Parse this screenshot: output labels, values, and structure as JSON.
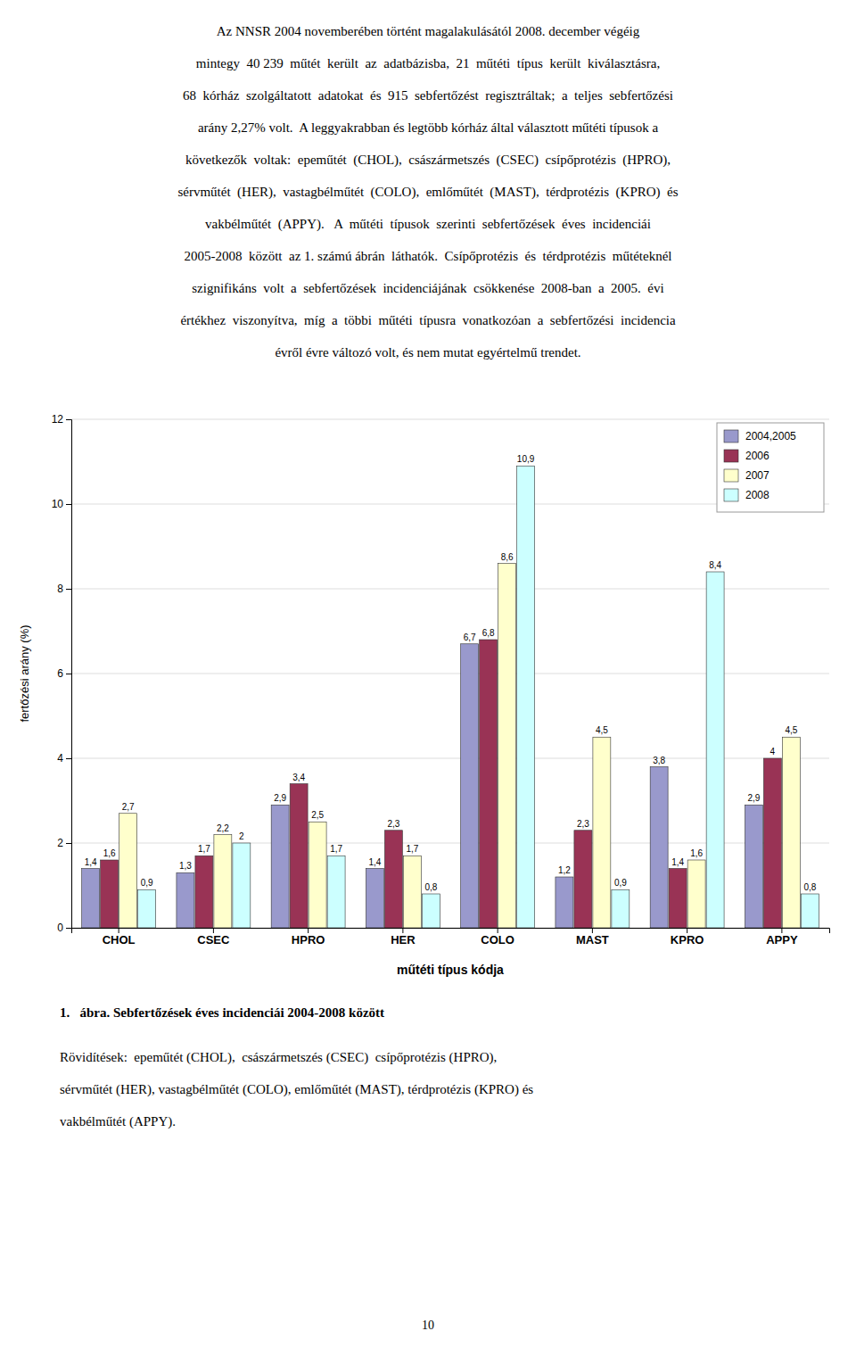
{
  "chart_data": {
    "type": "bar",
    "title": "1.   ábra. Sebfertőzések éves incidenciái 2004-2008 között",
    "annotations": [
      "Az NNSR 2004 novemberében történt magalakulásától 2008. december végéig",
      "mintegy  40 239  műtét  került  az  adatbázisba,  21  műtéti  típus  került  kiválasztásra,",
      "68  kórház  szolgáltatott  adatokat  és  915  sebfertőzést  regisztráltak;  a  teljes  sebfertőzési",
      "arány 2,27% volt.  A leggyakrabban és legtöbb kórház által választott műtéti típusok a",
      "következők  voltak:  epeműtét  (CHOL),  császármetszés  (CSEC)  csípőprotézis  (HPRO),",
      "sérvműtét  (HER),  vastagbélműtét  (COLO),  emlőműtét  (MAST),  térdprotézis  (KPRO)  és",
      "vakbélműtét  (APPY).   A  műtéti  típusok  szerinti  sebfertőzések  éves  incidenciái",
      "2005-2008  között  az 1. számú ábrán  láthatók.  Csípőprotézis  és  térdprotézis  műtéteknél",
      "szignifikáns  volt  a  sebfertőzések  incidenciájának  csökkenése  2008-ban  a  2005.  évi",
      "értékhez  viszonyítva,  míg  a  többi  műtéti  típusra  vonatkozóan  a  sebfertőzési  incidencia",
      "évről évre változó volt, és nem mutat egyértelmű trendet.",
      "Rövidítések:  epeműtét (CHOL),  császármetszés (CSEC)  csípőprotézis (HPRO),",
      "sérvműtét (HER), vastagbélműtét (COLO), emlőműtét (MAST), térdprotézis (KPRO) és",
      "vakbélműtét (APPY).",
      "10"
    ],
    "x_label": "műtéti típus kódja",
    "y_label": "fertőzési arány (%)",
    "categories": [
      "CHOL",
      "CSEC",
      "HPRO",
      "HER",
      "COLO",
      "MAST",
      "KPRO",
      "APPY"
    ],
    "series": [
      {
        "name": "2004,2005",
        "color": "#9999CC",
        "values": [
          1.4,
          1.3,
          2.9,
          1.4,
          6.7,
          1.2,
          3.8,
          2.9
        ],
        "value_labels": [
          "1,4",
          "1,3",
          "2,9",
          "1,4",
          "6,7",
          "1,2",
          "3,8",
          "2,9"
        ]
      },
      {
        "name": "2006",
        "color": "#993355",
        "values": [
          1.6,
          1.7,
          3.4,
          2.3,
          6.8,
          2.3,
          1.4,
          4.0
        ],
        "value_labels": [
          "1,6",
          "1,7",
          "3,4",
          "2,3",
          "6,8",
          "2,3",
          "1,4",
          "4"
        ]
      },
      {
        "name": "2007",
        "color": "#FFFFCC",
        "values": [
          2.7,
          2.2,
          2.5,
          1.7,
          8.6,
          4.5,
          1.6,
          4.5
        ],
        "value_labels": [
          "2,7",
          "2,2",
          "2,5",
          "1,7",
          "8,6",
          "4,5",
          "1,6",
          "4,5"
        ]
      },
      {
        "name": "2008",
        "color": "#CCFFFF",
        "values": [
          0.9,
          2.0,
          1.7,
          0.8,
          10.9,
          0.9,
          8.4,
          0.8
        ],
        "value_labels": [
          "0,9",
          "2",
          "1,7",
          "0,8",
          "10,9",
          "0,9",
          "8,4",
          "0,8"
        ]
      }
    ],
    "ylim": [
      0,
      12
    ],
    "yticks": [
      0,
      2,
      4,
      6,
      8,
      10,
      12
    ],
    "grid": true,
    "legend": "upper right",
    "data_labels": true
  }
}
